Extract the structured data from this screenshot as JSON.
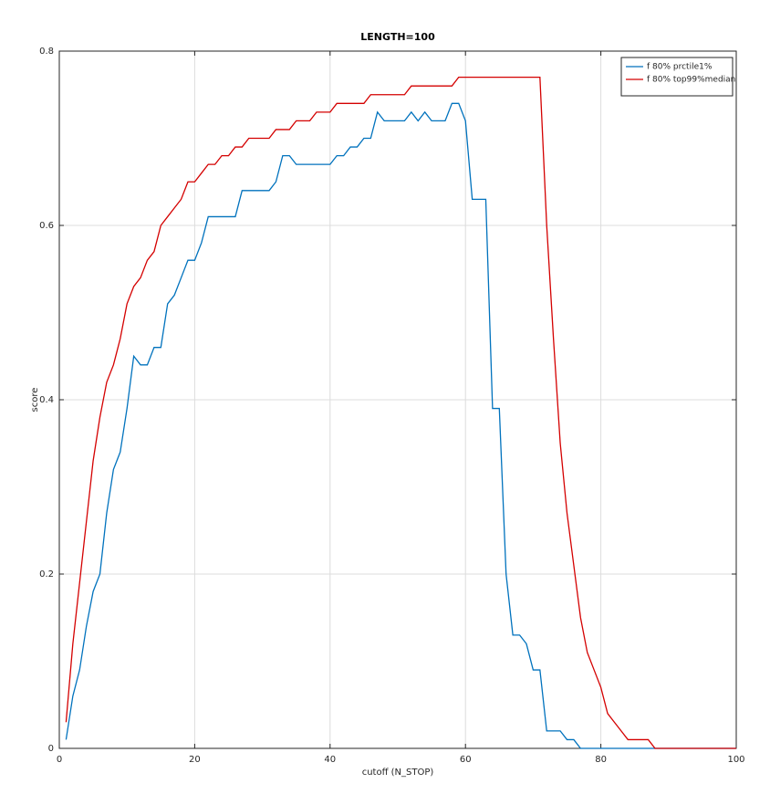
{
  "chart_data": {
    "type": "line",
    "title": "LENGTH=100",
    "x_label": "cutoff (N_STOP)",
    "y_label": "score",
    "x": [
      1,
      2,
      3,
      4,
      5,
      6,
      7,
      8,
      9,
      10,
      11,
      12,
      13,
      14,
      15,
      16,
      17,
      18,
      19,
      20,
      21,
      22,
      23,
      24,
      25,
      26,
      27,
      28,
      29,
      30,
      31,
      32,
      33,
      34,
      35,
      36,
      37,
      38,
      39,
      40,
      41,
      42,
      43,
      44,
      45,
      46,
      47,
      48,
      49,
      50,
      51,
      52,
      53,
      54,
      55,
      56,
      57,
      58,
      59,
      60,
      61,
      62,
      63,
      64,
      65,
      66,
      67,
      68,
      69,
      70,
      71,
      72,
      73,
      74,
      75,
      76,
      77,
      78,
      79,
      80,
      81,
      82,
      83,
      84,
      85,
      86,
      87,
      88,
      89,
      90,
      91,
      92,
      93,
      94,
      95,
      96,
      97,
      98,
      99,
      100
    ],
    "series": [
      {
        "name": "f 80% prctile1%",
        "color": "#0072bd",
        "values": [
          0.01,
          0.06,
          0.09,
          0.14,
          0.18,
          0.2,
          0.27,
          0.32,
          0.34,
          0.39,
          0.45,
          0.44,
          0.44,
          0.46,
          0.46,
          0.51,
          0.52,
          0.54,
          0.56,
          0.56,
          0.58,
          0.61,
          0.61,
          0.61,
          0.61,
          0.61,
          0.64,
          0.64,
          0.64,
          0.64,
          0.64,
          0.65,
          0.68,
          0.68,
          0.67,
          0.67,
          0.67,
          0.67,
          0.67,
          0.67,
          0.68,
          0.68,
          0.69,
          0.69,
          0.7,
          0.7,
          0.73,
          0.72,
          0.72,
          0.72,
          0.72,
          0.73,
          0.72,
          0.73,
          0.72,
          0.72,
          0.72,
          0.74,
          0.74,
          0.72,
          0.63,
          0.63,
          0.63,
          0.39,
          0.39,
          0.2,
          0.13,
          0.13,
          0.12,
          0.09,
          0.09,
          0.02,
          0.02,
          0.02,
          0.01,
          0.01,
          0,
          0,
          0,
          0,
          0,
          0,
          0,
          0,
          0,
          0,
          0,
          0,
          0,
          0,
          0,
          0,
          0,
          0,
          0,
          0,
          0,
          0,
          0,
          0
        ]
      },
      {
        "name": "f 80% top99%median",
        "color": "#d40000",
        "values": [
          0.03,
          0.12,
          0.19,
          0.26,
          0.33,
          0.38,
          0.42,
          0.44,
          0.47,
          0.51,
          0.53,
          0.54,
          0.56,
          0.57,
          0.6,
          0.61,
          0.62,
          0.63,
          0.65,
          0.65,
          0.66,
          0.67,
          0.67,
          0.68,
          0.68,
          0.69,
          0.69,
          0.7,
          0.7,
          0.7,
          0.7,
          0.71,
          0.71,
          0.71,
          0.72,
          0.72,
          0.72,
          0.73,
          0.73,
          0.73,
          0.74,
          0.74,
          0.74,
          0.74,
          0.74,
          0.75,
          0.75,
          0.75,
          0.75,
          0.75,
          0.75,
          0.76,
          0.76,
          0.76,
          0.76,
          0.76,
          0.76,
          0.76,
          0.77,
          0.77,
          0.77,
          0.77,
          0.77,
          0.77,
          0.77,
          0.77,
          0.77,
          0.77,
          0.77,
          0.77,
          0.77,
          0.6,
          0.47,
          0.35,
          0.27,
          0.21,
          0.15,
          0.11,
          0.09,
          0.07,
          0.04,
          0.03,
          0.02,
          0.01,
          0.01,
          0.01,
          0.01,
          0,
          0,
          0,
          0,
          0,
          0,
          0,
          0,
          0,
          0,
          0,
          0,
          0
        ]
      }
    ],
    "xlim": [
      0,
      100
    ],
    "xticks": [
      0,
      20,
      40,
      60,
      80,
      100
    ],
    "ylim": [
      0,
      0.8
    ],
    "yticks": [
      0,
      0.2,
      0.4,
      0.6,
      0.8
    ],
    "grid": true,
    "legend": "top-right"
  }
}
